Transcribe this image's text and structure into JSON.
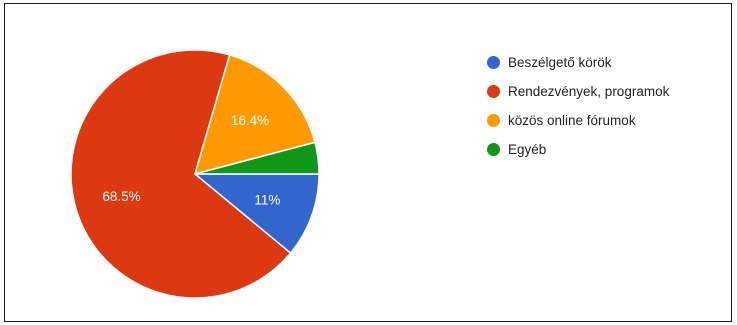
{
  "chart_data": {
    "type": "pie",
    "title": "",
    "categories": [
      "Beszélgető körök",
      "Rendezvények, programok",
      "közös online fórumok",
      "Egyéb"
    ],
    "values": [
      11,
      68.5,
      16.4,
      4.1
    ],
    "data_labels": [
      "11%",
      "68.5%",
      "16.4%",
      ""
    ],
    "colors": [
      "#3366cc",
      "#dc3912",
      "#ff9900",
      "#109618"
    ],
    "legend_position": "right"
  }
}
